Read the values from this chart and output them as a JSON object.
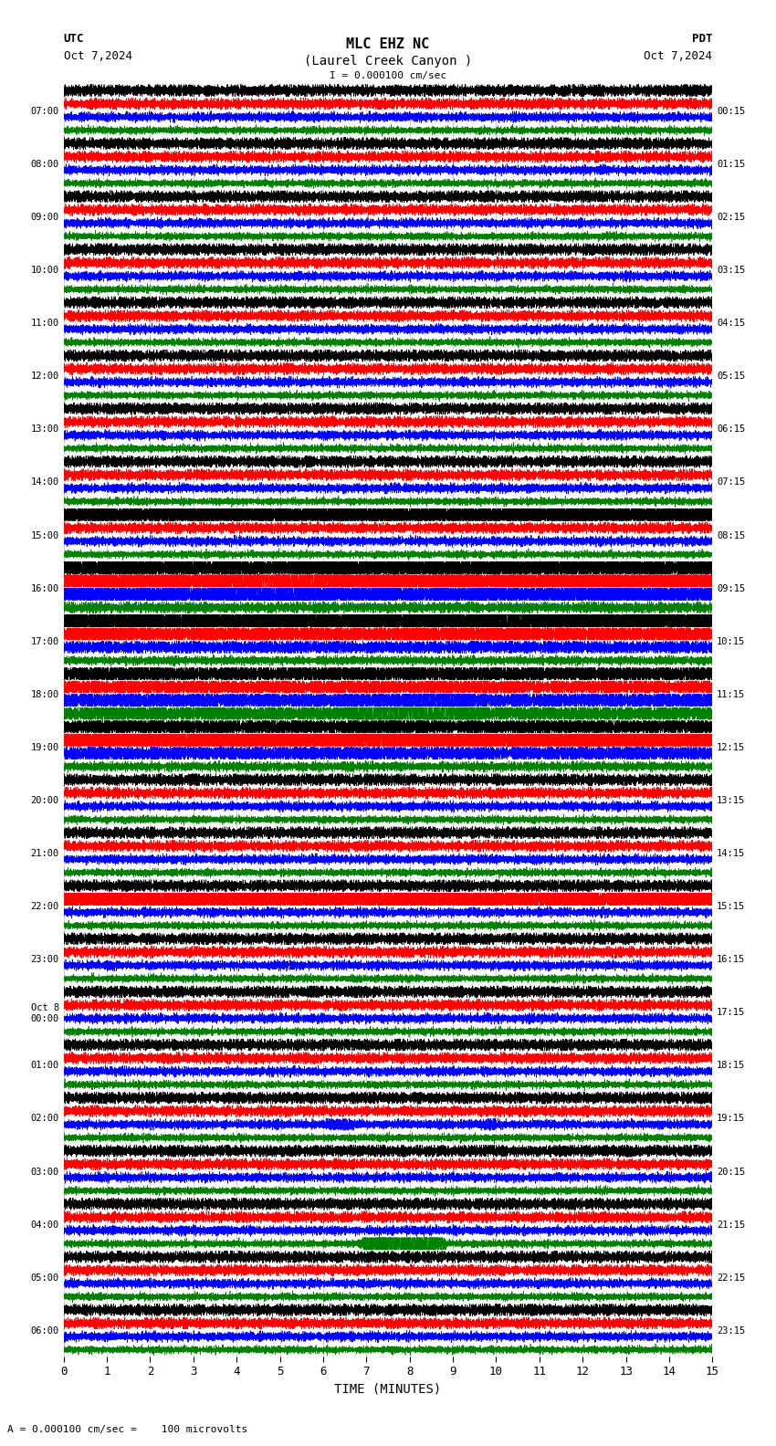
{
  "title_line1": "MLC EHZ NC",
  "title_line2": "(Laurel Creek Canyon )",
  "scale_text": "I = 0.000100 cm/sec",
  "utc_label": "UTC",
  "utc_date": "Oct 7,2024",
  "pdt_label": "PDT",
  "pdt_date": "Oct 7,2024",
  "xlabel": "TIME (MINUTES)",
  "bottom_note": "= 0.000100 cm/sec =    100 microvolts",
  "x_min": 0,
  "x_max": 15,
  "num_rows": 24,
  "traces_per_row": 4,
  "row_colors": [
    "black",
    "red",
    "blue",
    "green"
  ],
  "left_labels": [
    "07:00",
    "08:00",
    "09:00",
    "10:00",
    "11:00",
    "12:00",
    "13:00",
    "14:00",
    "15:00",
    "16:00",
    "17:00",
    "18:00",
    "19:00",
    "20:00",
    "21:00",
    "22:00",
    "23:00",
    "Oct 8\n00:00",
    "01:00",
    "02:00",
    "03:00",
    "04:00",
    "05:00",
    "06:00"
  ],
  "right_labels": [
    "00:15",
    "01:15",
    "02:15",
    "03:15",
    "04:15",
    "05:15",
    "06:15",
    "07:15",
    "08:15",
    "09:15",
    "10:15",
    "11:15",
    "12:15",
    "13:15",
    "14:15",
    "15:15",
    "16:15",
    "17:15",
    "18:15",
    "19:15",
    "20:15",
    "21:15",
    "22:15",
    "23:15"
  ],
  "bg_color": "#ffffff",
  "trace_linewidth": 0.5,
  "minute_ticks": [
    0,
    1,
    2,
    3,
    4,
    5,
    6,
    7,
    8,
    9,
    10,
    11,
    12,
    13,
    14,
    15
  ]
}
